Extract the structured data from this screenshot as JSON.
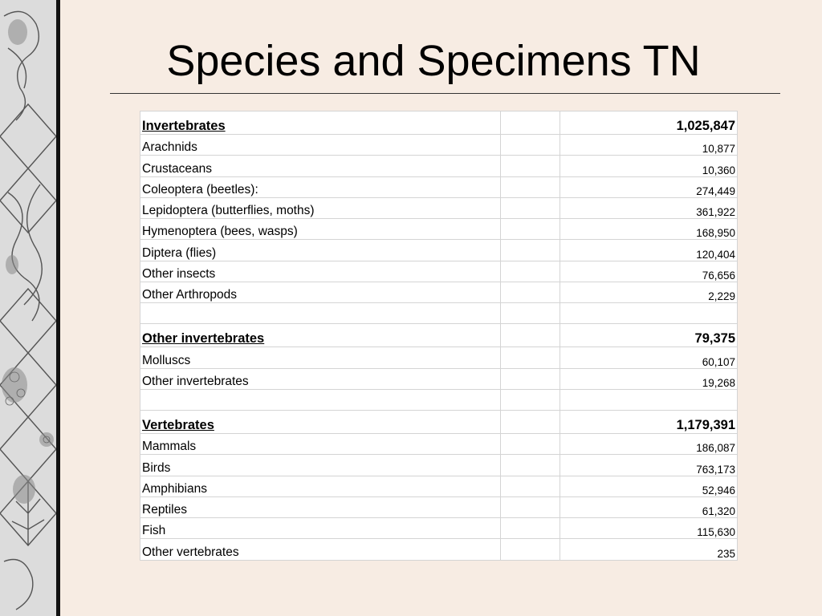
{
  "page": {
    "title": "Species and Specimens TN"
  },
  "decoration": {
    "strip_icon": "ornamental-nature-collage-icon",
    "colors": {
      "strip_fill": "#d9d9d9",
      "strip_line": "#4a4a4a",
      "border": "#111111"
    }
  },
  "table": {
    "sections": [
      {
        "name": "Invertebrates",
        "total": "1,025,847",
        "rows": [
          {
            "label": "Arachnids",
            "value": "10,877"
          },
          {
            "label": "Crustaceans",
            "value": "10,360"
          },
          {
            "label": "Coleoptera (beetles):",
            "value": "274,449"
          },
          {
            "label": "Lepidoptera (butterflies, moths)",
            "value": "361,922"
          },
          {
            "label": "Hymenoptera (bees, wasps)",
            "value": "168,950"
          },
          {
            "label": "Diptera (flies)",
            "value": "120,404"
          },
          {
            "label": "Other insects",
            "value": "76,656"
          },
          {
            "label": "Other Arthropods",
            "value": "2,229"
          }
        ]
      },
      {
        "name": "Other invertebrates",
        "total": "79,375",
        "rows": [
          {
            "label": "Molluscs",
            "value": "60,107"
          },
          {
            "label": "Other invertebrates",
            "value": "19,268"
          }
        ]
      },
      {
        "name": "Vertebrates",
        "total": "1,179,391",
        "rows": [
          {
            "label": "Mammals",
            "value": "186,087"
          },
          {
            "label": "Birds",
            "value": "763,173"
          },
          {
            "label": "Amphibians",
            "value": "52,946"
          },
          {
            "label": "Reptiles",
            "value": "61,320"
          },
          {
            "label": "Fish",
            "value": "115,630"
          },
          {
            "label": "Other vertebrates",
            "value": "235"
          }
        ]
      }
    ]
  }
}
